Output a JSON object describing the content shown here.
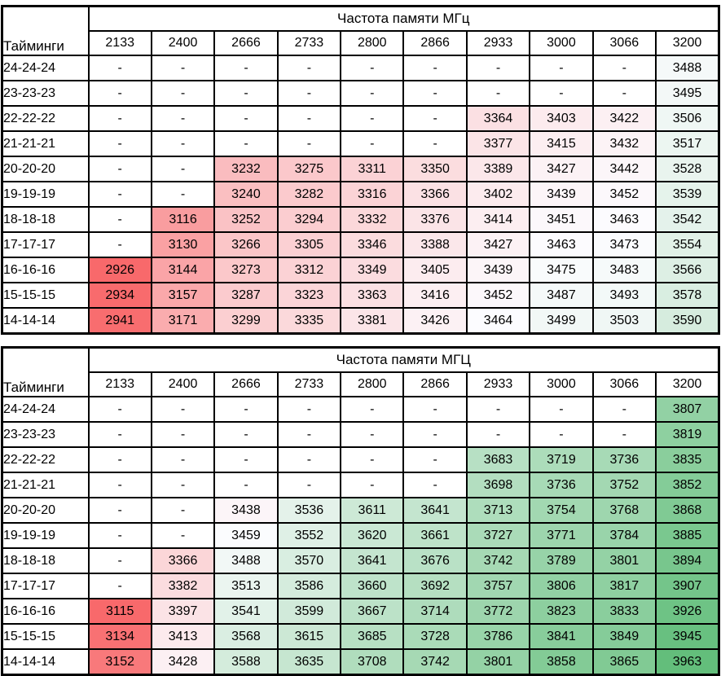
{
  "empty_cell_text": "-",
  "grid_line_color": "#000000",
  "background_color": "#FFFFFF",
  "chart_data": [
    {
      "type": "heatmap",
      "title": "Частота памяти МГц",
      "row_header_label": "Тайминги",
      "columns": [
        "2133",
        "2400",
        "2666",
        "2733",
        "2800",
        "2866",
        "2933",
        "3000",
        "3066",
        "3200"
      ],
      "rows": [
        "24-24-24",
        "23-23-23",
        "22-22-22",
        "21-21-21",
        "20-20-20",
        "19-19-19",
        "18-18-18",
        "17-17-17",
        "16-16-16",
        "15-15-15",
        "14-14-14"
      ],
      "values": [
        [
          null,
          null,
          null,
          null,
          null,
          null,
          null,
          null,
          null,
          3488
        ],
        [
          null,
          null,
          null,
          null,
          null,
          null,
          null,
          null,
          null,
          3495
        ],
        [
          null,
          null,
          null,
          null,
          null,
          null,
          3364,
          3403,
          3422,
          3506
        ],
        [
          null,
          null,
          null,
          null,
          null,
          null,
          3377,
          3415,
          3432,
          3517
        ],
        [
          null,
          null,
          3232,
          3275,
          3311,
          3350,
          3389,
          3427,
          3442,
          3528
        ],
        [
          null,
          null,
          3240,
          3282,
          3316,
          3366,
          3402,
          3439,
          3452,
          3539
        ],
        [
          null,
          3116,
          3252,
          3294,
          3332,
          3376,
          3414,
          3451,
          3463,
          3542
        ],
        [
          null,
          3130,
          3266,
          3305,
          3346,
          3388,
          3427,
          3463,
          3473,
          3554
        ],
        [
          2926,
          3144,
          3273,
          3312,
          3349,
          3405,
          3439,
          3475,
          3483,
          3566
        ],
        [
          2934,
          3157,
          3287,
          3323,
          3363,
          3416,
          3452,
          3487,
          3493,
          3578
        ],
        [
          2941,
          3171,
          3299,
          3335,
          3381,
          3426,
          3464,
          3499,
          3503,
          3590
        ]
      ],
      "color_scale": {
        "min_color": "#F8696B",
        "mid_color": "#FCFCFF",
        "max_color": "#63BE7B",
        "red_anchor": 2926,
        "white_anchor": 3465,
        "green_anchor": 3963,
        "empty_color": "#FFFFFF"
      }
    },
    {
      "type": "heatmap",
      "title": "Частота памяти МГЦ",
      "row_header_label": "Тайминги",
      "columns": [
        "2133",
        "2400",
        "2666",
        "2733",
        "2800",
        "2866",
        "2933",
        "3000",
        "3066",
        "3200"
      ],
      "rows": [
        "24-24-24",
        "23-23-23",
        "22-22-22",
        "21-21-21",
        "20-20-20",
        "19-19-19",
        "18-18-18",
        "17-17-17",
        "16-16-16",
        "15-15-15",
        "14-14-14"
      ],
      "values": [
        [
          null,
          null,
          null,
          null,
          null,
          null,
          null,
          null,
          null,
          3807
        ],
        [
          null,
          null,
          null,
          null,
          null,
          null,
          null,
          null,
          null,
          3819
        ],
        [
          null,
          null,
          null,
          null,
          null,
          null,
          3683,
          3719,
          3736,
          3835
        ],
        [
          null,
          null,
          null,
          null,
          null,
          null,
          3698,
          3736,
          3752,
          3852
        ],
        [
          null,
          null,
          3438,
          3536,
          3611,
          3641,
          3713,
          3754,
          3768,
          3868
        ],
        [
          null,
          null,
          3459,
          3552,
          3620,
          3661,
          3727,
          3771,
          3784,
          3885
        ],
        [
          null,
          3366,
          3488,
          3570,
          3641,
          3676,
          3742,
          3789,
          3801,
          3894
        ],
        [
          null,
          3382,
          3513,
          3586,
          3660,
          3692,
          3757,
          3806,
          3817,
          3907
        ],
        [
          3115,
          3397,
          3541,
          3599,
          3667,
          3714,
          3772,
          3823,
          3833,
          3926
        ],
        [
          3134,
          3413,
          3568,
          3615,
          3685,
          3728,
          3786,
          3841,
          3849,
          3945
        ],
        [
          3152,
          3428,
          3588,
          3635,
          3708,
          3742,
          3801,
          3858,
          3865,
          3963
        ]
      ],
      "color_scale": {
        "min_color": "#F8696B",
        "mid_color": "#FCFCFF",
        "max_color": "#63BE7B",
        "red_anchor": 3115,
        "white_anchor": 3455,
        "green_anchor": 3963,
        "empty_color": "#FFFFFF"
      }
    }
  ]
}
